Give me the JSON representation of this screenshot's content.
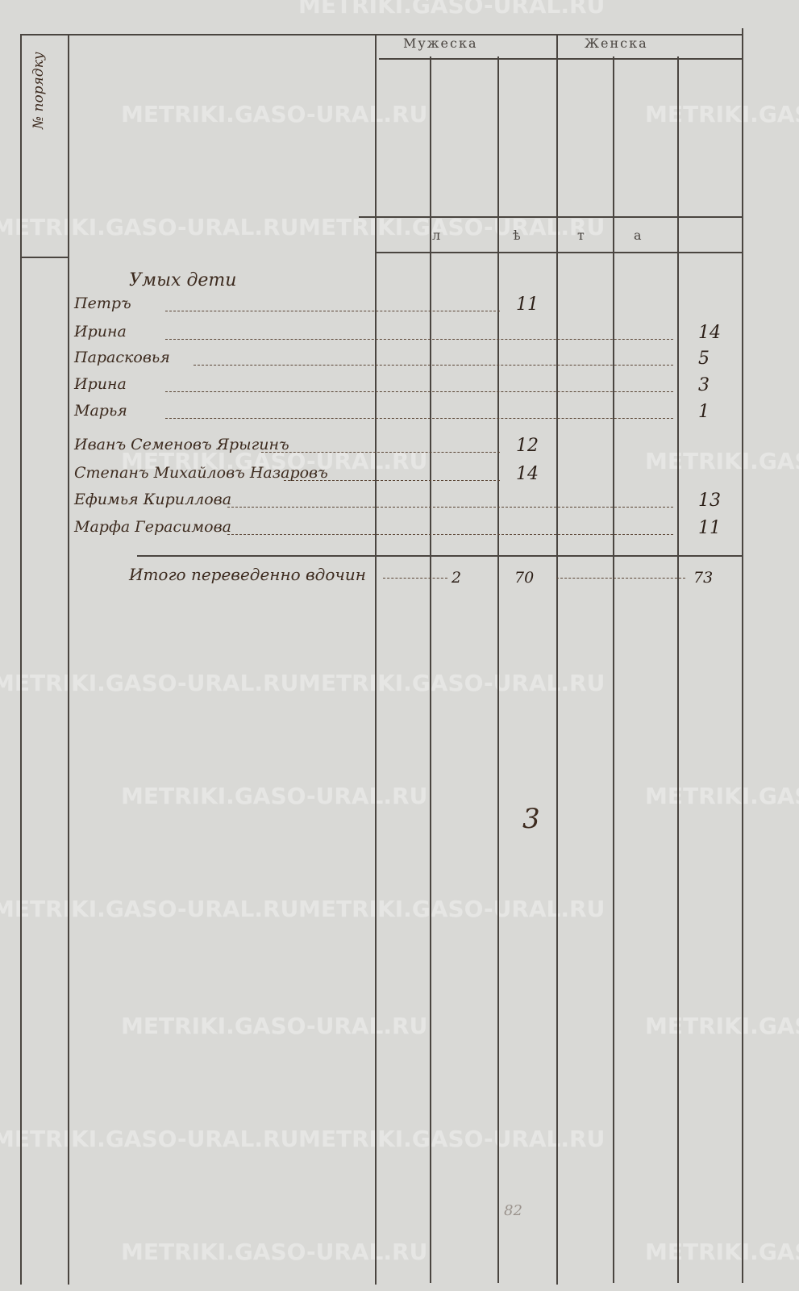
{
  "header": {
    "side_label": "№ порядку",
    "male": "Мужеска",
    "female": "Женска",
    "subheader": [
      "л",
      "ѣ",
      "т",
      "а"
    ]
  },
  "section_title": "Умых дети",
  "rows": [
    {
      "name": "Петръ",
      "male": "11",
      "female": ""
    },
    {
      "name": "Ирина",
      "male": "",
      "female": "14"
    },
    {
      "name": "Парасковья",
      "male": "",
      "female": "5"
    },
    {
      "name": "Ирина",
      "male": "",
      "female": "3"
    },
    {
      "name": "Марья",
      "male": "",
      "female": "1"
    },
    {
      "name": "Иванъ Семеновъ Ярыгинъ",
      "male": "12",
      "female": ""
    },
    {
      "name": "Степанъ Михайловъ Назаровъ",
      "male": "14",
      "female": ""
    },
    {
      "name": "Ефимья Кириллова",
      "male": "",
      "female": "13"
    },
    {
      "name": "Марфа Герасимова",
      "male": "",
      "female": "11"
    }
  ],
  "total": {
    "label": "Итого переведенно вдочин",
    "c1": "2",
    "c2": "70",
    "c3": "",
    "c4": "73"
  },
  "page_number": "3",
  "bottom_mark": "82",
  "watermark": "METRIKI.GASO-URAL.RU"
}
